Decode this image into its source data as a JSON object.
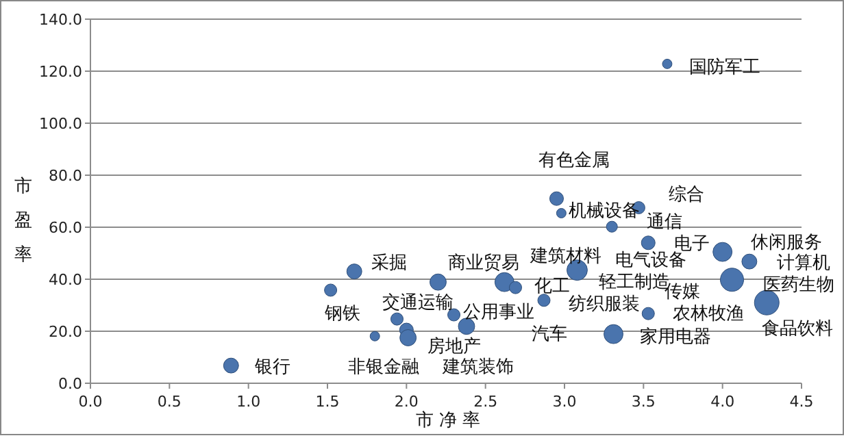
{
  "chart_data": {
    "type": "bubble",
    "xlabel": "市 净 率",
    "ylabel": "市盈率",
    "color": "#4a74ad",
    "grid": "y",
    "x": [
      0.89,
      1.52,
      1.67,
      1.8,
      1.94,
      2.0,
      2.01,
      2.2,
      2.3,
      2.38,
      2.62,
      2.69,
      2.87,
      3.08,
      2.95,
      2.98,
      3.47,
      3.3,
      3.53,
      4.0,
      4.17,
      4.06,
      4.28,
      3.53,
      3.31,
      3.65
    ],
    "values": [
      6.8,
      35.8,
      43.0,
      18.1,
      24.7,
      20.5,
      17.5,
      38.9,
      26.3,
      21.9,
      38.9,
      36.8,
      31.9,
      43.5,
      71.0,
      65.4,
      67.5,
      60.2,
      54.0,
      50.5,
      46.8,
      39.8,
      31.0,
      26.8,
      18.9,
      122.8
    ],
    "sizes": [
      0.37,
      0.25,
      0.37,
      0.15,
      0.25,
      0.31,
      0.44,
      0.44,
      0.25,
      0.44,
      0.6,
      0.25,
      0.25,
      0.69,
      0.31,
      0.15,
      0.25,
      0.2,
      0.31,
      0.6,
      0.37,
      0.89,
      1,
      0.25,
      0.6,
      0.15
    ],
    "xlim": [
      0,
      4.5
    ],
    "ylim": [
      0,
      140
    ],
    "xticks": [
      {
        "value": 0,
        "label": "0.0"
      },
      {
        "value": 0.5,
        "label": "0.5"
      },
      {
        "value": 1,
        "label": "1.0"
      },
      {
        "value": 1.5,
        "label": "1.5"
      },
      {
        "value": 2,
        "label": "2.0"
      },
      {
        "value": 2.5,
        "label": "2.5"
      },
      {
        "value": 3,
        "label": "3.0"
      },
      {
        "value": 3.5,
        "label": "3.5"
      },
      {
        "value": 4,
        "label": "4.0"
      },
      {
        "value": 4.5,
        "label": "4.5"
      }
    ],
    "yticks": [
      {
        "value": 0,
        "label": "0.0"
      },
      {
        "value": 20,
        "label": "20.0"
      },
      {
        "value": 40,
        "label": "40.0"
      },
      {
        "value": 60,
        "label": "60.0"
      },
      {
        "value": 80,
        "label": "80.0"
      },
      {
        "value": 100,
        "label": "100.0"
      },
      {
        "value": 120,
        "label": "120.0"
      },
      {
        "value": 140,
        "label": "140.0"
      }
    ],
    "annotations": [
      "银行",
      "钢铁",
      "采掘",
      "非银金融",
      "交通运输",
      "房地产",
      "建筑装饰",
      "公用事业",
      "商业贸易",
      "化工",
      "汽车",
      "纺织服装",
      "建筑材料",
      "有色金属",
      "机械设备",
      "综合",
      "通信",
      "电子",
      "电气设备",
      "轻工制造",
      "传媒",
      "农林牧渔",
      "家用电器",
      "休闲服务",
      "计算机",
      "医药生物",
      "食品饮料",
      "国防军工"
    ]
  }
}
